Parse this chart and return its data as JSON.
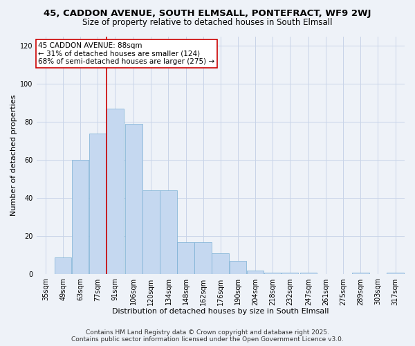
{
  "title1": "45, CADDON AVENUE, SOUTH ELMSALL, PONTEFRACT, WF9 2WJ",
  "title2": "Size of property relative to detached houses in South Elmsall",
  "xlabel": "Distribution of detached houses by size in South Elmsall",
  "ylabel": "Number of detached properties",
  "bins": [
    35,
    49,
    63,
    77,
    91,
    106,
    120,
    134,
    148,
    162,
    176,
    190,
    204,
    218,
    232,
    247,
    261,
    275,
    289,
    303,
    317
  ],
  "values": [
    0,
    9,
    60,
    74,
    87,
    79,
    44,
    44,
    17,
    17,
    11,
    7,
    2,
    1,
    1,
    1,
    0,
    0,
    1,
    0,
    1
  ],
  "bar_color": "#c5d8f0",
  "bar_edge_color": "#7aafd4",
  "vline_x": 91,
  "vline_color": "#cc0000",
  "annotation_title": "45 CADDON AVENUE: 88sqm",
  "annotation_line1": "← 31% of detached houses are smaller (124)",
  "annotation_line2": "68% of semi-detached houses are larger (275) →",
  "annotation_box_facecolor": "#ffffff",
  "annotation_box_edgecolor": "#cc0000",
  "ylim": [
    0,
    125
  ],
  "yticks": [
    0,
    20,
    40,
    60,
    80,
    100,
    120
  ],
  "grid_color": "#c8d4e8",
  "background_color": "#eef2f8",
  "footnote1": "Contains HM Land Registry data © Crown copyright and database right 2025.",
  "footnote2": "Contains public sector information licensed under the Open Government Licence v3.0.",
  "title1_fontsize": 9.5,
  "title2_fontsize": 8.5,
  "xlabel_fontsize": 8,
  "ylabel_fontsize": 8,
  "tick_fontsize": 7,
  "annotation_fontsize": 7.5,
  "footnote_fontsize": 6.5
}
